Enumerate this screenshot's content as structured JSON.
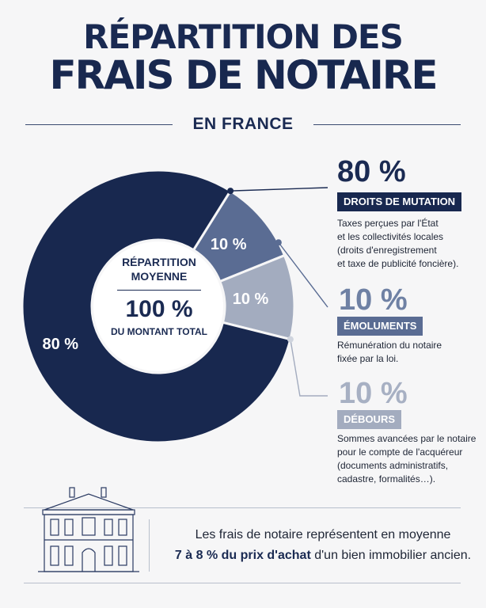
{
  "header": {
    "title_line1": "RÉPARTITION DES",
    "title_line2": "FRAIS DE NOTAIRE",
    "subtitle": "EN FRANCE"
  },
  "chart_data": {
    "type": "pie",
    "categories": [
      "DROITS DE MUTATION",
      "ÉMOLUMENTS",
      "DÉBOURS"
    ],
    "values": [
      80,
      10,
      10
    ],
    "value_labels": [
      "80 %",
      "10 %",
      "10 %"
    ],
    "colors": [
      "#18284f",
      "#5a6c93",
      "#a3acbf"
    ],
    "center": {
      "label": "RÉPARTITION MOYENNE",
      "value": "100 %",
      "sublabel": "DU MONTANT TOTAL"
    }
  },
  "legend": [
    {
      "percent": "80 %",
      "label": "DROITS DE MUTATION",
      "description": [
        "Taxes perçues par l'État",
        "et les collectivités locales",
        "(droits d'enregistrement",
        "et taxe de publicité foncière)."
      ]
    },
    {
      "percent": "10 %",
      "label": "ÉMOLUMENTS",
      "description": [
        "Rémunération du notaire",
        "fixée par la loi."
      ]
    },
    {
      "percent": "10 %",
      "label": "DÉBOURS",
      "description": [
        "Sommes avancées par le notaire",
        "pour le compte de l'acquéreur",
        "(documents administratifs,",
        "cadastre, formalités…)."
      ]
    }
  ],
  "footer": {
    "line1": "Les frais de notaire représentent en moyenne",
    "highlight": "7 à 8 % du prix d'achat",
    "line2_rest": " d'un bien immobilier ancien."
  },
  "icons": {
    "building": "notary-building-icon"
  }
}
